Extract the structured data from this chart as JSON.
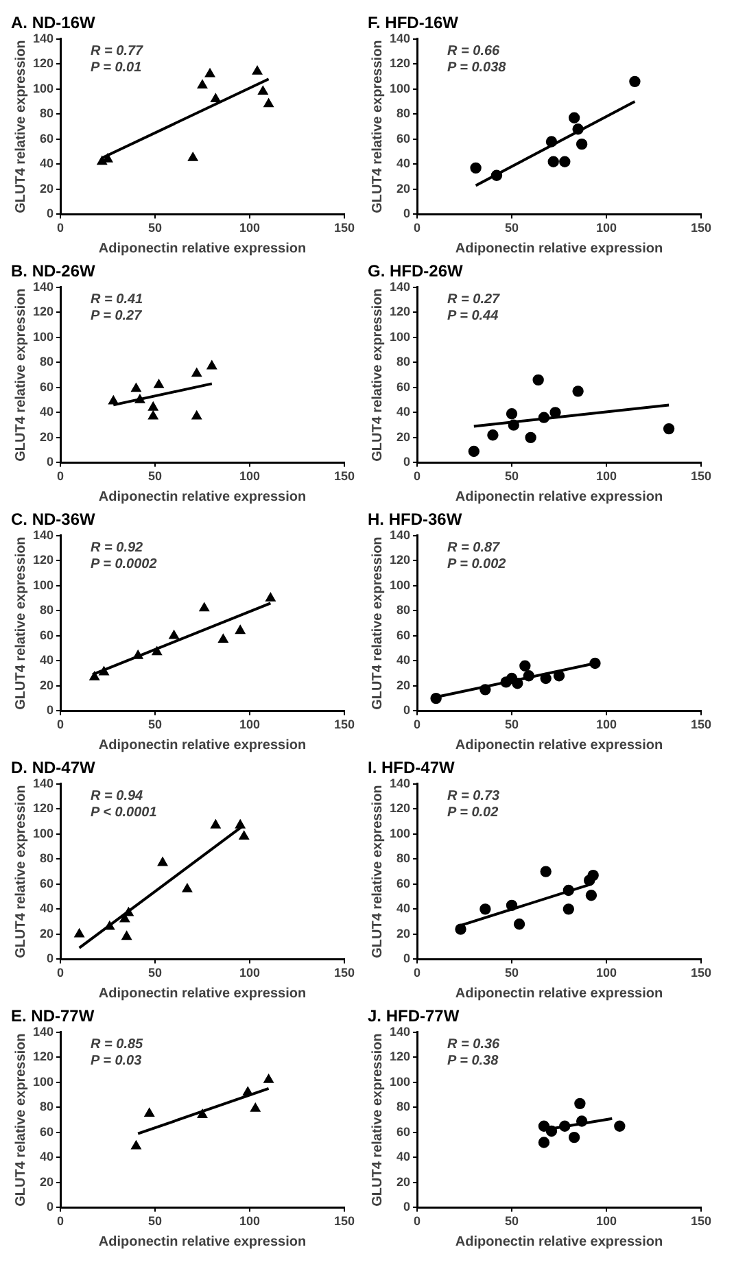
{
  "chart_data": [
    {
      "type": "scatter",
      "title": "A. ND-16W",
      "xlabel": "Adiponectin relative expression",
      "ylabel": "GLUT4 relative expression",
      "xlim": [
        0,
        150
      ],
      "xticks": [
        0,
        50,
        100,
        150
      ],
      "ylim": [
        0,
        140
      ],
      "yticks": [
        0,
        20,
        40,
        60,
        80,
        100,
        120,
        140
      ],
      "grid": false,
      "legend": false,
      "annotations": [
        "R = 0.77",
        "P = 0.01"
      ],
      "series": [
        {
          "type": "scatter",
          "marker": "triangle",
          "color": "#000000",
          "x": [
            22,
            25,
            70,
            75,
            79,
            82,
            104,
            107,
            110
          ],
          "values": [
            42,
            44,
            45,
            103,
            112,
            92,
            114,
            98,
            88
          ]
        },
        {
          "type": "line",
          "marker": "none",
          "color": "#000000",
          "x": [
            22,
            110
          ],
          "values": [
            45,
            108
          ]
        }
      ]
    },
    {
      "type": "scatter",
      "title": "B. ND-26W",
      "xlabel": "Adiponectin relative expression",
      "ylabel": "GLUT4 relative expression",
      "xlim": [
        0,
        150
      ],
      "xticks": [
        0,
        50,
        100,
        150
      ],
      "ylim": [
        0,
        140
      ],
      "yticks": [
        0,
        20,
        40,
        60,
        80,
        100,
        120,
        140
      ],
      "grid": false,
      "legend": false,
      "annotations": [
        "R = 0.41",
        "P = 0.27"
      ],
      "series": [
        {
          "type": "scatter",
          "marker": "triangle",
          "color": "#000000",
          "x": [
            28,
            40,
            42,
            49,
            49,
            52,
            72,
            72,
            80
          ],
          "values": [
            49,
            59,
            50,
            44,
            37,
            62,
            71,
            37,
            77
          ]
        },
        {
          "type": "line",
          "marker": "none",
          "color": "#000000",
          "x": [
            28,
            80
          ],
          "values": [
            46,
            63
          ]
        }
      ]
    },
    {
      "type": "scatter",
      "title": "C. ND-36W",
      "xlabel": "Adiponectin relative expression",
      "ylabel": "GLUT4 relative expression",
      "xlim": [
        0,
        150
      ],
      "xticks": [
        0,
        50,
        100,
        150
      ],
      "ylim": [
        0,
        140
      ],
      "yticks": [
        0,
        20,
        40,
        60,
        80,
        100,
        120,
        140
      ],
      "grid": false,
      "legend": false,
      "annotations": [
        "R = 0.92",
        "P = 0.0002"
      ],
      "series": [
        {
          "type": "scatter",
          "marker": "triangle",
          "color": "#000000",
          "x": [
            18,
            23,
            41,
            51,
            60,
            76,
            86,
            95,
            111
          ],
          "values": [
            27,
            31,
            44,
            47,
            60,
            82,
            57,
            64,
            90
          ]
        },
        {
          "type": "line",
          "marker": "none",
          "color": "#000000",
          "x": [
            17,
            111
          ],
          "values": [
            29,
            86
          ]
        }
      ]
    },
    {
      "type": "scatter",
      "title": "D. ND-47W",
      "xlabel": "Adiponectin relative expression",
      "ylabel": "GLUT4 relative expression",
      "xlim": [
        0,
        150
      ],
      "xticks": [
        0,
        50,
        100,
        150
      ],
      "ylim": [
        0,
        140
      ],
      "yticks": [
        0,
        20,
        40,
        60,
        80,
        100,
        120,
        140
      ],
      "grid": false,
      "legend": false,
      "annotations": [
        "R = 0.94",
        "P < 0.0001"
      ],
      "series": [
        {
          "type": "scatter",
          "marker": "triangle",
          "color": "#000000",
          "x": [
            10,
            26,
            34,
            35,
            36,
            54,
            67,
            82,
            95,
            97
          ],
          "values": [
            20,
            26,
            32,
            18,
            37,
            77,
            56,
            107,
            107,
            98
          ]
        },
        {
          "type": "line",
          "marker": "none",
          "color": "#000000",
          "x": [
            10,
            96
          ],
          "values": [
            9,
            106
          ]
        }
      ]
    },
    {
      "type": "scatter",
      "title": "E. ND-77W",
      "xlabel": "Adiponectin relative expression",
      "ylabel": "GLUT4 relative expression",
      "xlim": [
        0,
        150
      ],
      "xticks": [
        0,
        50,
        100,
        150
      ],
      "ylim": [
        0,
        140
      ],
      "yticks": [
        0,
        20,
        40,
        60,
        80,
        100,
        120,
        140
      ],
      "grid": false,
      "legend": false,
      "annotations": [
        "R = 0.85",
        "P = 0.03"
      ],
      "series": [
        {
          "type": "scatter",
          "marker": "triangle",
          "color": "#000000",
          "x": [
            40,
            47,
            75,
            99,
            103,
            110
          ],
          "values": [
            49,
            75,
            74,
            92,
            79,
            102
          ]
        },
        {
          "type": "line",
          "marker": "none",
          "color": "#000000",
          "x": [
            41,
            110
          ],
          "values": [
            59,
            95
          ]
        }
      ]
    },
    {
      "type": "scatter",
      "title": "F. HFD-16W",
      "xlabel": "Adiponectin relative expression",
      "ylabel": "GLUT4 relative expression",
      "xlim": [
        0,
        150
      ],
      "xticks": [
        0,
        50,
        100,
        150
      ],
      "ylim": [
        0,
        140
      ],
      "yticks": [
        0,
        20,
        40,
        60,
        80,
        100,
        120,
        140
      ],
      "grid": false,
      "legend": false,
      "annotations": [
        "R = 0.66",
        "P = 0.038"
      ],
      "series": [
        {
          "type": "scatter",
          "marker": "circle",
          "color": "#000000",
          "x": [
            31,
            42,
            71,
            72,
            78,
            83,
            85,
            87,
            115
          ],
          "values": [
            37,
            31,
            58,
            42,
            42,
            77,
            68,
            56,
            106
          ]
        },
        {
          "type": "line",
          "marker": "none",
          "color": "#000000",
          "x": [
            31,
            115
          ],
          "values": [
            23,
            90
          ]
        }
      ]
    },
    {
      "type": "scatter",
      "title": "G. HFD-26W",
      "xlabel": "Adiponectin relative expression",
      "ylabel": "GLUT4 relative expression",
      "xlim": [
        0,
        150
      ],
      "xticks": [
        0,
        50,
        100,
        150
      ],
      "ylim": [
        0,
        140
      ],
      "yticks": [
        0,
        20,
        40,
        60,
        80,
        100,
        120,
        140
      ],
      "grid": false,
      "legend": false,
      "annotations": [
        "R = 0.27",
        "P = 0.44"
      ],
      "series": [
        {
          "type": "scatter",
          "marker": "circle",
          "color": "#000000",
          "x": [
            30,
            40,
            50,
            51,
            60,
            64,
            67,
            73,
            85,
            133
          ],
          "values": [
            9,
            22,
            39,
            30,
            20,
            66,
            36,
            40,
            57,
            27
          ]
        },
        {
          "type": "line",
          "marker": "none",
          "color": "#000000",
          "x": [
            30,
            133
          ],
          "values": [
            29,
            46
          ]
        }
      ]
    },
    {
      "type": "scatter",
      "title": "H. HFD-36W",
      "xlabel": "Adiponectin relative expression",
      "ylabel": "GLUT4 relative expression",
      "xlim": [
        0,
        150
      ],
      "xticks": [
        0,
        50,
        100,
        150
      ],
      "ylim": [
        0,
        140
      ],
      "yticks": [
        0,
        20,
        40,
        60,
        80,
        100,
        120,
        140
      ],
      "grid": false,
      "legend": false,
      "annotations": [
        "R = 0.87",
        "P = 0.002"
      ],
      "series": [
        {
          "type": "scatter",
          "marker": "circle",
          "color": "#000000",
          "x": [
            10,
            36,
            47,
            50,
            53,
            57,
            59,
            68,
            75,
            94
          ],
          "values": [
            10,
            17,
            23,
            26,
            22,
            36,
            28,
            26,
            28,
            38
          ]
        },
        {
          "type": "line",
          "marker": "none",
          "color": "#000000",
          "x": [
            10,
            94
          ],
          "values": [
            11,
            38
          ]
        }
      ]
    },
    {
      "type": "scatter",
      "title": "I. HFD-47W",
      "xlabel": "Adiponectin relative expression",
      "ylabel": "GLUT4 relative expression",
      "xlim": [
        0,
        150
      ],
      "xticks": [
        0,
        50,
        100,
        150
      ],
      "ylim": [
        0,
        140
      ],
      "yticks": [
        0,
        20,
        40,
        60,
        80,
        100,
        120,
        140
      ],
      "grid": false,
      "legend": false,
      "annotations": [
        "R = 0.73",
        "P = 0.02"
      ],
      "series": [
        {
          "type": "scatter",
          "marker": "circle",
          "color": "#000000",
          "x": [
            23,
            36,
            50,
            54,
            68,
            80,
            80,
            91,
            92,
            93
          ],
          "values": [
            24,
            40,
            43,
            28,
            70,
            55,
            40,
            63,
            51,
            67
          ]
        },
        {
          "type": "line",
          "marker": "none",
          "color": "#000000",
          "x": [
            23,
            92
          ],
          "values": [
            27,
            60
          ]
        }
      ]
    },
    {
      "type": "scatter",
      "title": "J. HFD-77W",
      "xlabel": "Adiponectin relative expression",
      "ylabel": "GLUT4 relative expression",
      "xlim": [
        0,
        150
      ],
      "xticks": [
        0,
        50,
        100,
        150
      ],
      "ylim": [
        0,
        140
      ],
      "yticks": [
        0,
        20,
        40,
        60,
        80,
        100,
        120,
        140
      ],
      "grid": false,
      "legend": false,
      "annotations": [
        "R = 0.36",
        "P = 0.38"
      ],
      "series": [
        {
          "type": "scatter",
          "marker": "circle",
          "color": "#000000",
          "x": [
            67,
            67,
            71,
            78,
            83,
            86,
            87,
            107
          ],
          "values": [
            52,
            65,
            61,
            65,
            56,
            83,
            69,
            65
          ]
        },
        {
          "type": "line",
          "marker": "none",
          "color": "#000000",
          "x": [
            67,
            103
          ],
          "values": [
            62,
            71
          ]
        }
      ]
    }
  ]
}
